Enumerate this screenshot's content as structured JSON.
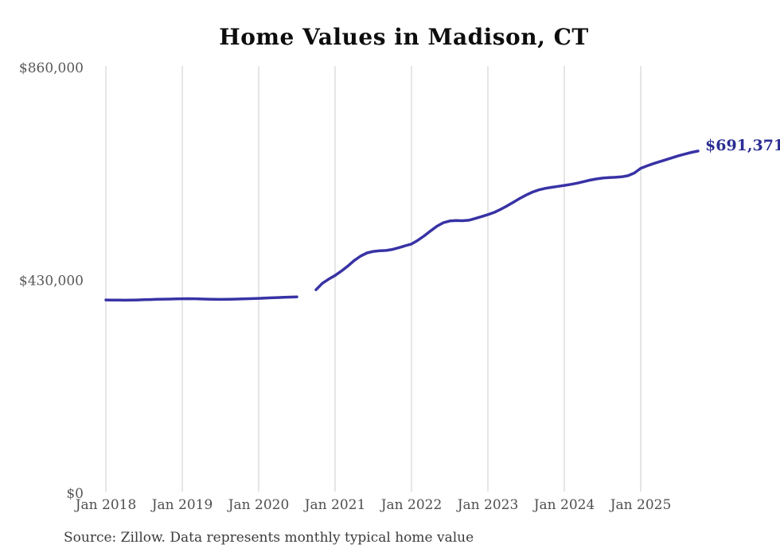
{
  "header": {
    "title": "Home Values in Madison, CT"
  },
  "footer": {
    "source_note": "Source: Zillow. Data represents monthly typical home value"
  },
  "chart_data": {
    "type": "line",
    "title": "Home Values in Madison, CT",
    "xlabel": "",
    "ylabel": "",
    "ylim": [
      0,
      860000
    ],
    "grid": "vertical-only",
    "legend": "none",
    "end_label": "$691,371",
    "end_value": 691371,
    "series_name": "Typical home value",
    "colors": {
      "line": "#3832a5",
      "end_label": "#2b2d93",
      "grid": "#cccccc",
      "axis_text": "#555555",
      "title": "#0d0d0d",
      "source_text": "#3c3c3c"
    },
    "yticks": [
      {
        "label": "$0",
        "value": 0
      },
      {
        "label": "$430,000",
        "value": 430000
      },
      {
        "label": "$860,000",
        "value": 860000
      }
    ],
    "xticks": [
      {
        "label": "Jan 2018",
        "month_index": 0
      },
      {
        "label": "Jan 2019",
        "month_index": 12
      },
      {
        "label": "Jan 2020",
        "month_index": 24
      },
      {
        "label": "Jan 2021",
        "month_index": 36
      },
      {
        "label": "Jan 2022",
        "month_index": 48
      },
      {
        "label": "Jan 2023",
        "month_index": 60
      },
      {
        "label": "Jan 2024",
        "month_index": 72
      },
      {
        "label": "Jan 2025",
        "month_index": 84
      }
    ],
    "months": [
      "2018-01",
      "2018-02",
      "2018-03",
      "2018-04",
      "2018-05",
      "2018-06",
      "2018-07",
      "2018-08",
      "2018-09",
      "2018-10",
      "2018-11",
      "2018-12",
      "2019-01",
      "2019-02",
      "2019-03",
      "2019-04",
      "2019-05",
      "2019-06",
      "2019-07",
      "2019-08",
      "2019-09",
      "2019-10",
      "2019-11",
      "2019-12",
      "2020-01",
      "2020-02",
      "2020-03",
      "2020-04",
      "2020-05",
      "2020-06",
      "2020-07",
      "2020-08",
      "2020-09",
      "2020-10",
      "2020-11",
      "2020-12",
      "2021-01",
      "2021-02",
      "2021-03",
      "2021-04",
      "2021-05",
      "2021-06",
      "2021-07",
      "2021-08",
      "2021-09",
      "2021-10",
      "2021-11",
      "2021-12",
      "2022-01",
      "2022-02",
      "2022-03",
      "2022-04",
      "2022-05",
      "2022-06",
      "2022-07",
      "2022-08",
      "2022-09",
      "2022-10",
      "2022-11",
      "2022-12",
      "2023-01",
      "2023-02",
      "2023-03",
      "2023-04",
      "2023-05",
      "2023-06",
      "2023-07",
      "2023-08",
      "2023-09",
      "2023-10",
      "2023-11",
      "2023-12",
      "2024-01",
      "2024-02",
      "2024-03",
      "2024-04",
      "2024-05",
      "2024-06",
      "2024-07",
      "2024-08",
      "2024-09",
      "2024-10",
      "2024-11",
      "2024-12",
      "2025-01",
      "2025-02",
      "2025-03",
      "2025-04",
      "2025-05",
      "2025-06",
      "2025-07",
      "2025-08",
      "2025-09",
      "2025-10"
    ],
    "values": [
      390500,
      390300,
      390100,
      390000,
      390200,
      390500,
      390900,
      391300,
      391700,
      392000,
      392300,
      392600,
      392900,
      393000,
      392800,
      392400,
      392000,
      391700,
      391600,
      391700,
      392000,
      392400,
      392800,
      393200,
      393700,
      394200,
      394800,
      395300,
      395700,
      396200,
      396800,
      null,
      null,
      411000,
      424000,
      432500,
      440000,
      449000,
      459000,
      470000,
      479000,
      485500,
      488500,
      489800,
      490500,
      492500,
      496000,
      500000,
      503500,
      511000,
      520000,
      530000,
      539500,
      546500,
      550000,
      551000,
      550500,
      551500,
      555000,
      559000,
      563000,
      567500,
      573500,
      580500,
      588000,
      595500,
      602500,
      608500,
      613000,
      616000,
      618000,
      620000,
      622000,
      624000,
      626500,
      629500,
      632500,
      635000,
      636800,
      637800,
      638300,
      639300,
      641500,
      647000,
      656500,
      661500,
      666000,
      670000,
      674000,
      678000,
      682000,
      685500,
      688800,
      691371
    ]
  }
}
